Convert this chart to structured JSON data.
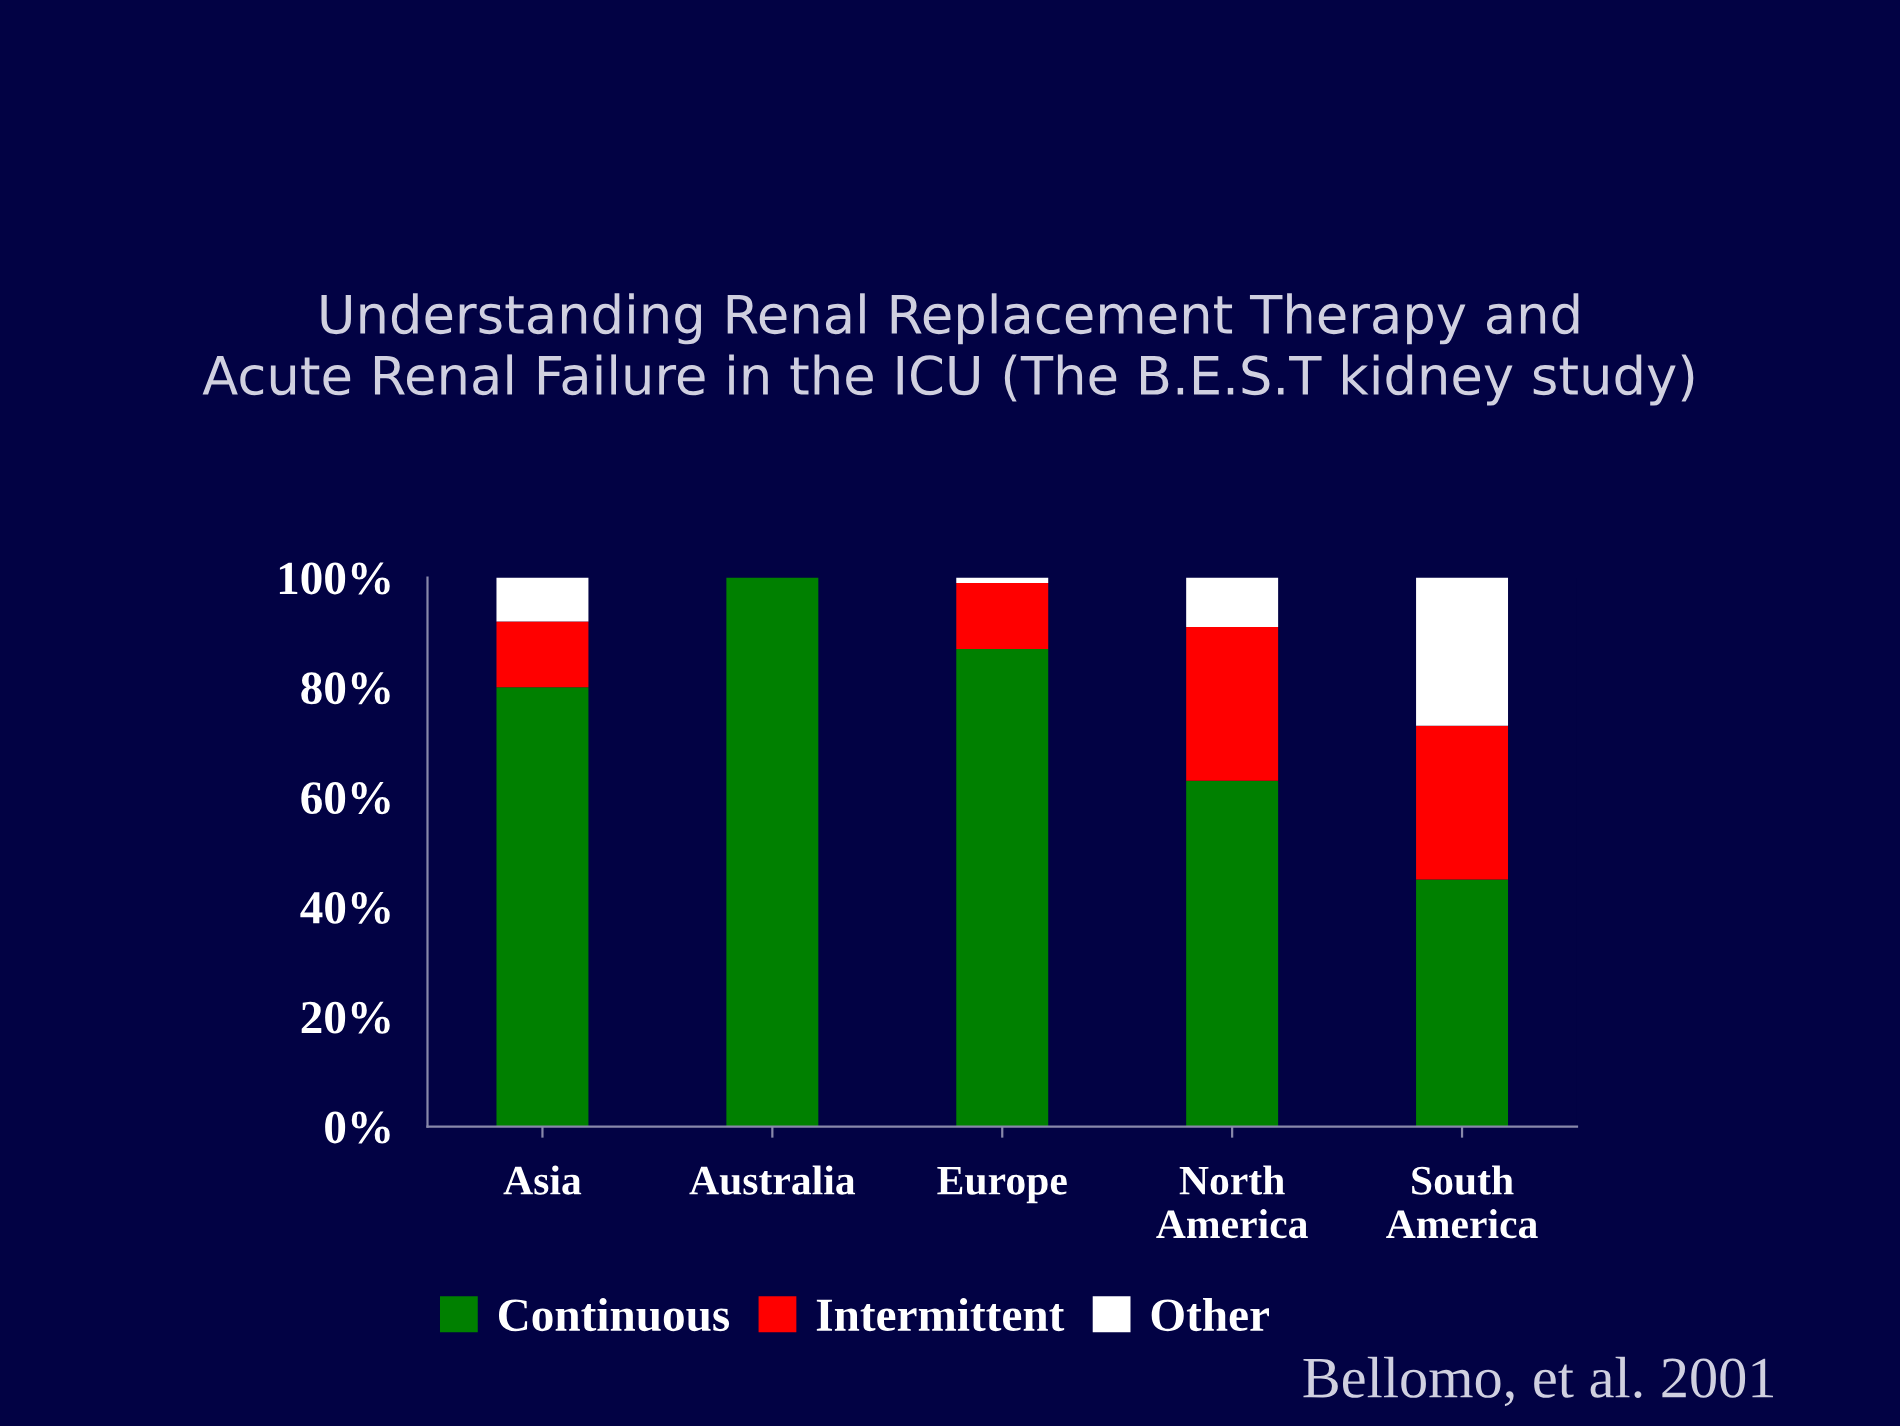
{
  "chart_data": {
    "type": "bar",
    "stacked": true,
    "title": "Understanding Renal Replacement Therapy and\nAcute Renal Failure in the ICU (The B.E.S.T kidney study)",
    "categories": [
      "Asia",
      "Australia",
      "Europe",
      "North America",
      "South America"
    ],
    "series": [
      {
        "name": "Continuous",
        "color": "#008000",
        "values": [
          80,
          100,
          87,
          63,
          45
        ]
      },
      {
        "name": "Intermittent",
        "color": "#ff0000",
        "values": [
          12,
          0,
          12,
          28,
          28
        ]
      },
      {
        "name": "Other",
        "color": "#ffffff",
        "values": [
          8,
          0,
          1,
          9,
          27
        ]
      }
    ],
    "ylim": [
      0,
      100
    ],
    "yticks": [
      {
        "value": 0,
        "label": "0%"
      },
      {
        "value": 20,
        "label": "20%"
      },
      {
        "value": 40,
        "label": "40%"
      },
      {
        "value": 60,
        "label": "60%"
      },
      {
        "value": 80,
        "label": "80%"
      },
      {
        "value": 100,
        "label": "100%"
      }
    ],
    "grid": false,
    "legend": "bottom",
    "annotations": [
      "Bellomo, et al. 2001"
    ]
  }
}
